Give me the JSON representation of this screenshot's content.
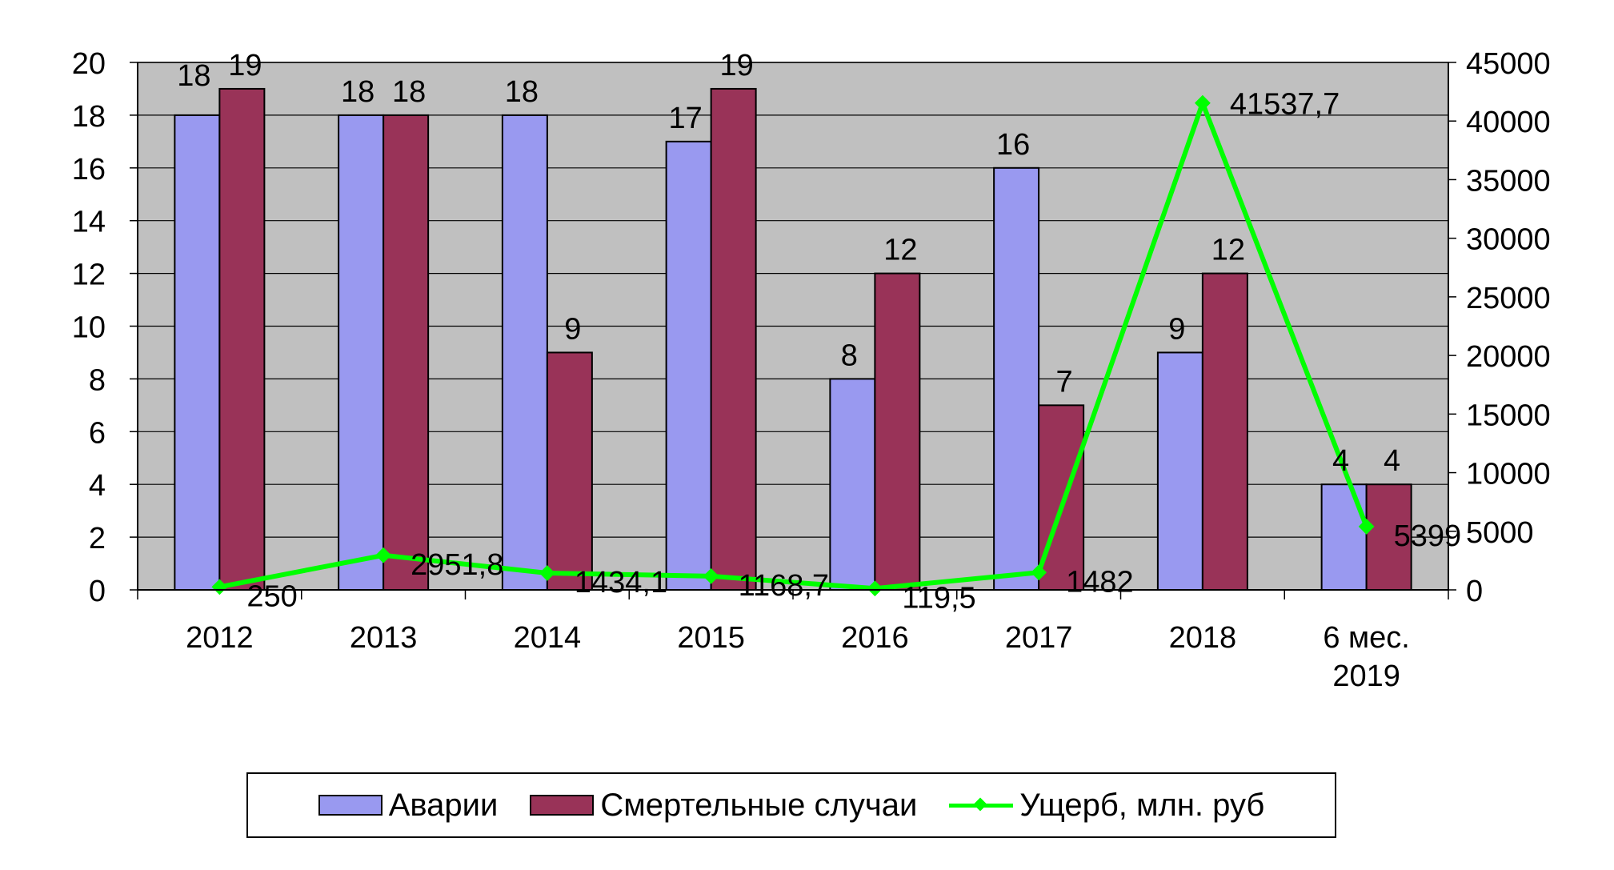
{
  "colors": {
    "plot_bg": "#c0c0c0",
    "accidents": "#9999f0",
    "deaths": "#993358",
    "damage": "#00ff00",
    "grid": "#000000"
  },
  "chart_data": {
    "type": "bar",
    "categories": [
      "2012",
      "2013",
      "2014",
      "2015",
      "2016",
      "2017",
      "2018",
      "6 мес. 2019"
    ],
    "series": [
      {
        "name": "Аварии",
        "type": "bar",
        "axis": "left",
        "values": [
          18,
          18,
          18,
          17,
          8,
          16,
          9,
          4
        ],
        "labels": [
          "18",
          "18",
          "18",
          "17",
          "8",
          "16",
          "9",
          "4"
        ]
      },
      {
        "name": "Смертельные случаи",
        "type": "bar",
        "axis": "left",
        "values": [
          19,
          18,
          9,
          19,
          12,
          7,
          12,
          4
        ],
        "labels": [
          "19",
          "18",
          "9",
          "19",
          "12",
          "7",
          "12",
          "4"
        ]
      },
      {
        "name": "Ущерб, млн. руб",
        "type": "line",
        "axis": "right",
        "values": [
          250,
          2951.8,
          1434.1,
          1168.7,
          119.5,
          1482,
          41537.7,
          5399
        ],
        "labels": [
          "250",
          "2951,8",
          "1434,1",
          "1168,7",
          "119,5",
          "1482",
          "41537,7",
          "5399"
        ]
      }
    ],
    "y_left": {
      "min": 0,
      "max": 20,
      "step": 2,
      "ticks": [
        "0",
        "2",
        "4",
        "6",
        "8",
        "10",
        "12",
        "14",
        "16",
        "18",
        "20"
      ]
    },
    "y_right": {
      "min": 0,
      "max": 45000,
      "step": 5000,
      "ticks": [
        "0",
        "5000",
        "10000",
        "15000",
        "20000",
        "25000",
        "30000",
        "35000",
        "40000",
        "45000"
      ]
    },
    "grid": true,
    "legend_position": "bottom"
  }
}
